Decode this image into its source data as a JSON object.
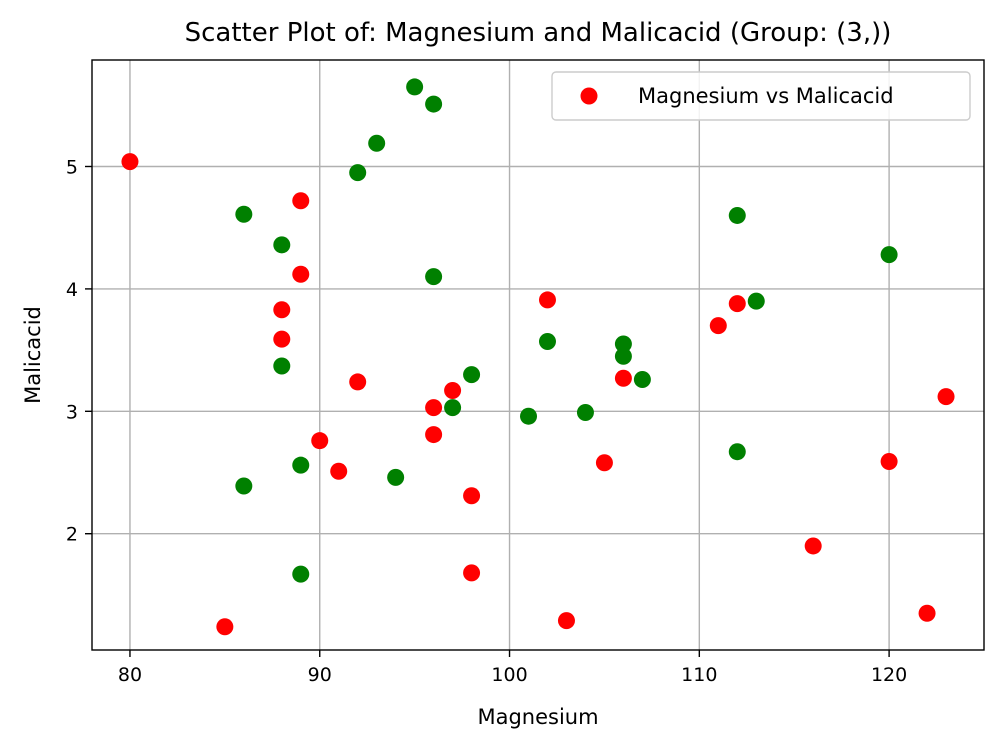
{
  "chart_data": {
    "type": "scatter",
    "title": "Scatter Plot of: Magnesium and Malicacid (Group: (3,))",
    "xlabel": "Magnesium",
    "ylabel": "Malicacid",
    "xlim": [
      78,
      125
    ],
    "ylim": [
      1.05,
      5.87
    ],
    "xticks": [
      80,
      90,
      100,
      110,
      120
    ],
    "yticks": [
      2,
      3,
      4,
      5
    ],
    "grid": true,
    "legend": {
      "position": "top-right",
      "entries": [
        {
          "label": "Magnesium vs Malicacid",
          "color": "#ff0000"
        }
      ]
    },
    "series": [
      {
        "name": "Magnesium vs Malicacid",
        "color": "#ff0000",
        "points": [
          [
            80,
            5.04
          ],
          [
            85,
            1.24
          ],
          [
            88,
            3.83
          ],
          [
            88,
            3.59
          ],
          [
            89,
            4.72
          ],
          [
            89,
            4.12
          ],
          [
            90,
            2.76
          ],
          [
            91,
            2.51
          ],
          [
            92,
            3.24
          ],
          [
            96,
            3.03
          ],
          [
            96,
            2.81
          ],
          [
            97,
            3.17
          ],
          [
            98,
            2.31
          ],
          [
            98,
            1.68
          ],
          [
            102,
            3.91
          ],
          [
            103,
            1.29
          ],
          [
            105,
            2.58
          ],
          [
            106,
            3.27
          ],
          [
            111,
            3.7
          ],
          [
            112,
            3.88
          ],
          [
            116,
            1.9
          ],
          [
            120,
            2.59
          ],
          [
            122,
            1.35
          ],
          [
            123,
            3.12
          ]
        ]
      },
      {
        "color": "#008000",
        "points": [
          [
            86,
            4.61
          ],
          [
            86,
            2.39
          ],
          [
            88,
            4.36
          ],
          [
            88,
            3.37
          ],
          [
            89,
            2.56
          ],
          [
            89,
            1.67
          ],
          [
            92,
            4.95
          ],
          [
            93,
            5.19
          ],
          [
            94,
            2.46
          ],
          [
            95,
            5.65
          ],
          [
            96,
            5.51
          ],
          [
            96,
            4.1
          ],
          [
            97,
            3.03
          ],
          [
            98,
            3.3
          ],
          [
            101,
            2.96
          ],
          [
            102,
            3.57
          ],
          [
            104,
            2.99
          ],
          [
            106,
            3.55
          ],
          [
            106,
            3.45
          ],
          [
            107,
            3.26
          ],
          [
            112,
            4.6
          ],
          [
            112,
            2.67
          ],
          [
            113,
            3.9
          ],
          [
            120,
            4.28
          ]
        ]
      }
    ]
  }
}
